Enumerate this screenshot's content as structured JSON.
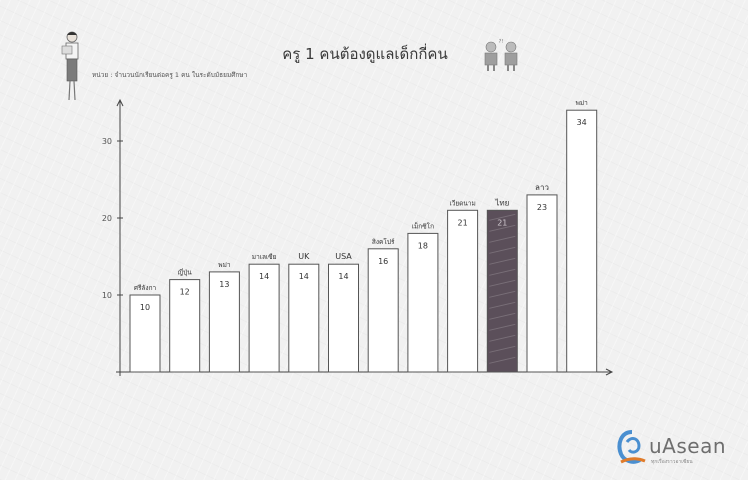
{
  "title": "ครู 1 คนต้องดูแลเด็กกี่คน",
  "unit_note": "หน่วย : จำนวนนักเรียนต่อครู 1 คน ในระดับมัธยมศึกษา",
  "logo": {
    "text": "uAsean",
    "subtitle": "ทุกเรื่องราวอาเซียน"
  },
  "colors": {
    "bar": "#ffffff",
    "highlight": "#5b4f5a",
    "axis": "#444444"
  },
  "icons": {
    "person": "teacher-with-book-icon",
    "kids": "two-children-icon",
    "logo": "uasean-logo-icon"
  },
  "chart_data": {
    "type": "bar",
    "title": "ครู 1 คนต้องดูแลเด็กกี่คน",
    "categories": [
      "ศรีลังกา",
      "ญี่ปุ่น",
      "พม่า",
      "มาเลเซีย",
      "UK",
      "USA",
      "สิงคโปร์",
      "เม็กซิโก",
      "เวียดนาม",
      "ไทย",
      "ลาว",
      "พม่า"
    ],
    "values": [
      10,
      12,
      13,
      14,
      14,
      14,
      16,
      18,
      21,
      21,
      23,
      34
    ],
    "highlight_category": "ไทย",
    "yticks": [
      10,
      20,
      30
    ],
    "ylim": [
      0,
      35
    ],
    "grid": false,
    "legend": "none"
  }
}
